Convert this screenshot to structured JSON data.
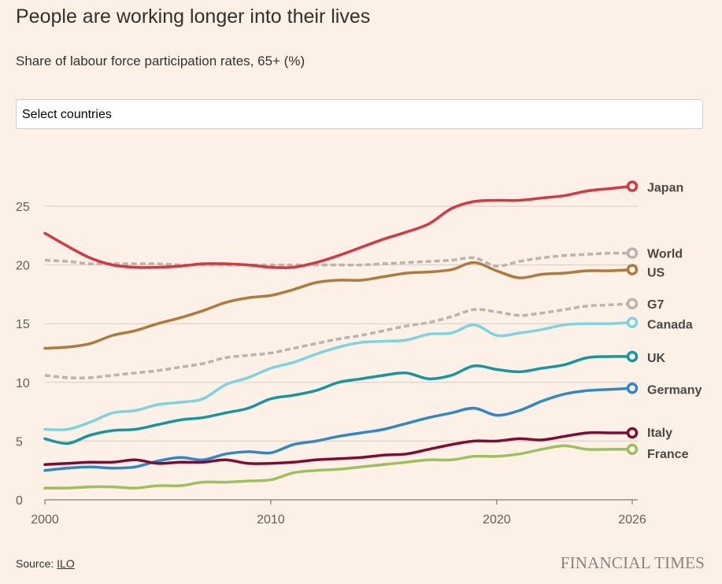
{
  "header": {
    "title": "People are working longer into their lives",
    "subtitle": "Share of labour force participation rates, 65+ (%)"
  },
  "controls": {
    "select_countries": "Select countries"
  },
  "footer": {
    "source_label": "Source:",
    "source_link": "ILO",
    "brand": "FINANCIAL TIMES"
  },
  "chart_data": {
    "type": "line",
    "title": "People are working longer into their lives",
    "subtitle": "Share of labour force participation rates, 65+ (%)",
    "xlabel": "",
    "ylabel": "",
    "xlim": [
      2000,
      2026
    ],
    "ylim": [
      0,
      27.5
    ],
    "x_ticks": [
      2000,
      2010,
      2020,
      2026
    ],
    "y_ticks": [
      0,
      5,
      10,
      15,
      20,
      25
    ],
    "grid": "horizontal",
    "x": [
      2000,
      2001,
      2002,
      2003,
      2004,
      2005,
      2006,
      2007,
      2008,
      2009,
      2010,
      2011,
      2012,
      2013,
      2014,
      2015,
      2016,
      2017,
      2018,
      2019,
      2020,
      2021,
      2022,
      2023,
      2024,
      2025,
      2026
    ],
    "series": [
      {
        "name": "Japan",
        "color": "#d33843",
        "dashed": false,
        "values": [
          22.7,
          21.6,
          20.6,
          20.0,
          19.8,
          19.8,
          19.9,
          20.1,
          20.1,
          20.0,
          19.8,
          19.8,
          20.2,
          20.8,
          21.5,
          22.2,
          22.8,
          23.5,
          24.8,
          25.4,
          25.5,
          25.5,
          25.7,
          25.9,
          26.3,
          26.5,
          26.7
        ]
      },
      {
        "name": "World",
        "color": "#bbb3ad",
        "dashed": true,
        "values": [
          20.4,
          20.3,
          20.1,
          20.1,
          20.1,
          20.1,
          20.0,
          20.0,
          20.0,
          20.0,
          20.0,
          20.0,
          20.0,
          20.0,
          20.0,
          20.1,
          20.2,
          20.3,
          20.4,
          20.6,
          19.9,
          20.3,
          20.6,
          20.8,
          20.9,
          21.0,
          21.0
        ]
      },
      {
        "name": "US",
        "color": "#ad7c3d",
        "dashed": false,
        "values": [
          12.9,
          13.0,
          13.3,
          14.0,
          14.4,
          15.0,
          15.5,
          16.1,
          16.8,
          17.2,
          17.4,
          17.9,
          18.5,
          18.7,
          18.7,
          19.0,
          19.3,
          19.4,
          19.6,
          20.2,
          19.5,
          18.9,
          19.2,
          19.3,
          19.5,
          19.5,
          19.6
        ]
      },
      {
        "name": "G7",
        "color": "#bbb3ad",
        "dashed": true,
        "values": [
          10.6,
          10.4,
          10.4,
          10.6,
          10.8,
          11.0,
          11.3,
          11.6,
          12.1,
          12.3,
          12.5,
          12.9,
          13.3,
          13.7,
          14.0,
          14.4,
          14.8,
          15.1,
          15.6,
          16.2,
          16.0,
          15.7,
          15.9,
          16.2,
          16.5,
          16.6,
          16.7
        ]
      },
      {
        "name": "Canada",
        "color": "#7bd5df",
        "dashed": false,
        "values": [
          6.0,
          6.0,
          6.6,
          7.4,
          7.6,
          8.1,
          8.3,
          8.6,
          9.8,
          10.4,
          11.2,
          11.7,
          12.4,
          13.0,
          13.4,
          13.5,
          13.6,
          14.1,
          14.2,
          14.9,
          14.0,
          14.2,
          14.5,
          14.9,
          15.0,
          15.0,
          15.1
        ]
      },
      {
        "name": "UK",
        "color": "#14979f",
        "dashed": false,
        "values": [
          5.2,
          4.8,
          5.5,
          5.9,
          6.0,
          6.4,
          6.8,
          7.0,
          7.4,
          7.8,
          8.6,
          8.9,
          9.3,
          10.0,
          10.3,
          10.6,
          10.8,
          10.3,
          10.6,
          11.4,
          11.1,
          10.9,
          11.2,
          11.5,
          12.1,
          12.2,
          12.2
        ]
      },
      {
        "name": "Germany",
        "color": "#2f88c8",
        "dashed": false,
        "values": [
          2.5,
          2.7,
          2.8,
          2.7,
          2.8,
          3.3,
          3.6,
          3.4,
          3.9,
          4.1,
          4.0,
          4.7,
          5.0,
          5.4,
          5.7,
          6.0,
          6.5,
          7.0,
          7.4,
          7.8,
          7.2,
          7.6,
          8.4,
          9.0,
          9.3,
          9.4,
          9.5
        ]
      },
      {
        "name": "Italy",
        "color": "#7e0c34",
        "dashed": false,
        "values": [
          3.0,
          3.1,
          3.2,
          3.2,
          3.4,
          3.1,
          3.2,
          3.2,
          3.4,
          3.1,
          3.1,
          3.2,
          3.4,
          3.5,
          3.6,
          3.8,
          3.9,
          4.3,
          4.7,
          5.0,
          5.0,
          5.2,
          5.1,
          5.4,
          5.7,
          5.7,
          5.7
        ]
      },
      {
        "name": "France",
        "color": "#9cc05a",
        "dashed": false,
        "values": [
          1.0,
          1.0,
          1.1,
          1.1,
          1.0,
          1.2,
          1.2,
          1.5,
          1.5,
          1.6,
          1.7,
          2.3,
          2.5,
          2.6,
          2.8,
          3.0,
          3.2,
          3.4,
          3.4,
          3.7,
          3.7,
          3.9,
          4.3,
          4.6,
          4.3,
          4.3,
          4.3
        ]
      }
    ]
  }
}
